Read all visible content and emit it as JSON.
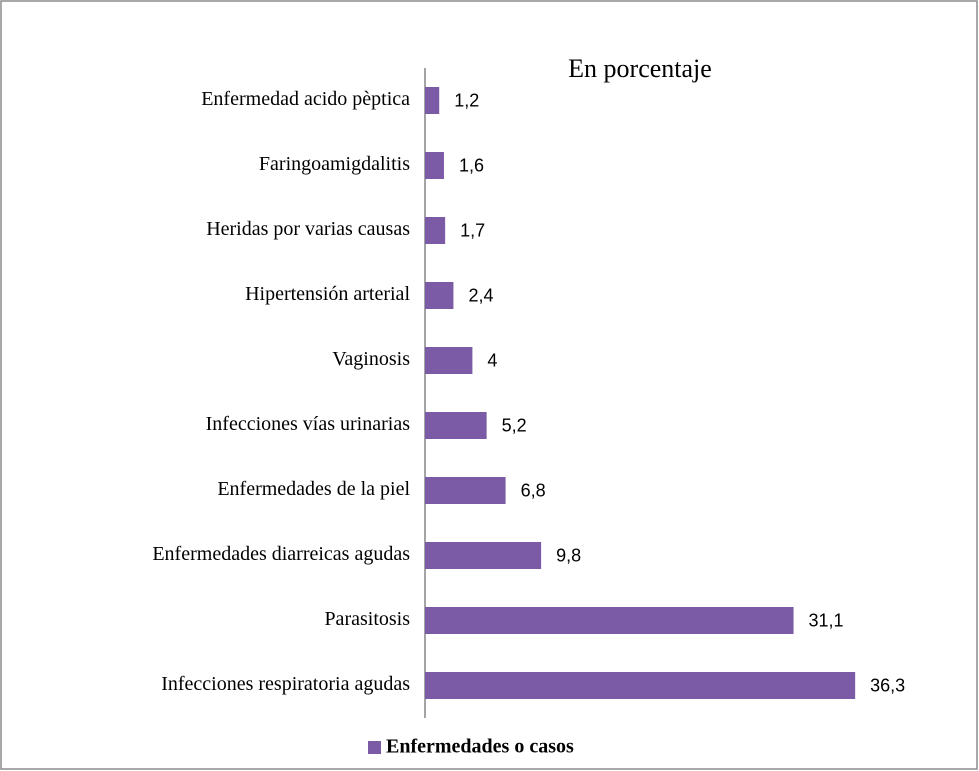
{
  "chart_data": {
    "type": "bar",
    "orientation": "horizontal",
    "title": "En porcentaje",
    "categories": [
      "Enfermedad acido pèptica",
      "Faringoamigdalitis",
      "Heridas por varias causas",
      "Hipertensión arterial",
      "Vaginosis",
      "Infecciones vías urinarias",
      "Enfermedades de la piel",
      "Enfermedades diarreicas agudas",
      "Parasitosis",
      "Infecciones respiratoria agudas"
    ],
    "series": [
      {
        "name": "Enfermedades o casos",
        "color": "#7b5aa6",
        "values": [
          1.2,
          1.6,
          1.7,
          2.4,
          4,
          5.2,
          6.8,
          9.8,
          31.1,
          36.3
        ],
        "value_labels": [
          "1,2",
          "1,6",
          "1,7",
          "2,4",
          "4",
          "5,2",
          "6,8",
          "9,8",
          "31,1",
          "36,3"
        ]
      }
    ],
    "xlim": [
      0,
      40
    ]
  }
}
